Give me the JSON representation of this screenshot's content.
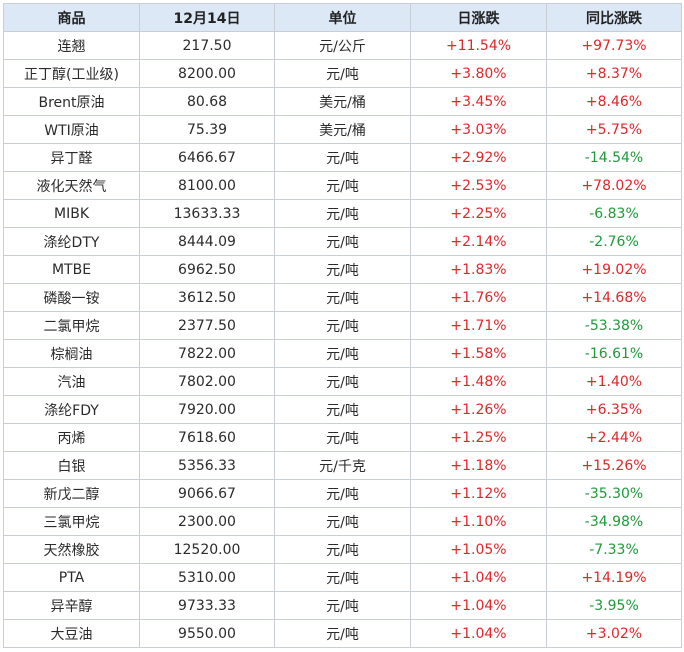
{
  "table": {
    "headers": [
      "商品",
      "12月14日",
      "单位",
      "日涨跌",
      "同比涨跌"
    ],
    "colors": {
      "up": "#e0272b",
      "down": "#1f9a3a",
      "header_bg": "#dce8f6"
    },
    "rows": [
      [
        "连翘",
        "217.50",
        "元/公斤",
        "+11.54%",
        "+97.73%"
      ],
      [
        "正丁醇(工业级)",
        "8200.00",
        "元/吨",
        "+3.80%",
        "+8.37%"
      ],
      [
        "Brent原油",
        "80.68",
        "美元/桶",
        "+3.45%",
        "+8.46%"
      ],
      [
        "WTI原油",
        "75.39",
        "美元/桶",
        "+3.03%",
        "+5.75%"
      ],
      [
        "异丁醛",
        "6466.67",
        "元/吨",
        "+2.92%",
        "-14.54%"
      ],
      [
        "液化天然气",
        "8100.00",
        "元/吨",
        "+2.53%",
        "+78.02%"
      ],
      [
        "MIBK",
        "13633.33",
        "元/吨",
        "+2.25%",
        "-6.83%"
      ],
      [
        "涤纶DTY",
        "8444.09",
        "元/吨",
        "+2.14%",
        "-2.76%"
      ],
      [
        "MTBE",
        "6962.50",
        "元/吨",
        "+1.83%",
        "+19.02%"
      ],
      [
        "磷酸一铵",
        "3612.50",
        "元/吨",
        "+1.76%",
        "+14.68%"
      ],
      [
        "二氯甲烷",
        "2377.50",
        "元/吨",
        "+1.71%",
        "-53.38%"
      ],
      [
        "棕榈油",
        "7822.00",
        "元/吨",
        "+1.58%",
        "-16.61%"
      ],
      [
        "汽油",
        "7802.00",
        "元/吨",
        "+1.48%",
        "+1.40%"
      ],
      [
        "涤纶FDY",
        "7920.00",
        "元/吨",
        "+1.26%",
        "+6.35%"
      ],
      [
        "丙烯",
        "7618.60",
        "元/吨",
        "+1.25%",
        "+2.44%"
      ],
      [
        "白银",
        "5356.33",
        "元/千克",
        "+1.18%",
        "+15.26%"
      ],
      [
        "新戊二醇",
        "9066.67",
        "元/吨",
        "+1.12%",
        "-35.30%"
      ],
      [
        "三氯甲烷",
        "2300.00",
        "元/吨",
        "+1.10%",
        "-34.98%"
      ],
      [
        "天然橡胶",
        "12520.00",
        "元/吨",
        "+1.05%",
        "-7.33%"
      ],
      [
        "PTA",
        "5310.00",
        "元/吨",
        "+1.04%",
        "+14.19%"
      ],
      [
        "异辛醇",
        "9733.33",
        "元/吨",
        "+1.04%",
        "-3.95%"
      ],
      [
        "大豆油",
        "9550.00",
        "元/吨",
        "+1.04%",
        "+3.02%"
      ]
    ]
  }
}
